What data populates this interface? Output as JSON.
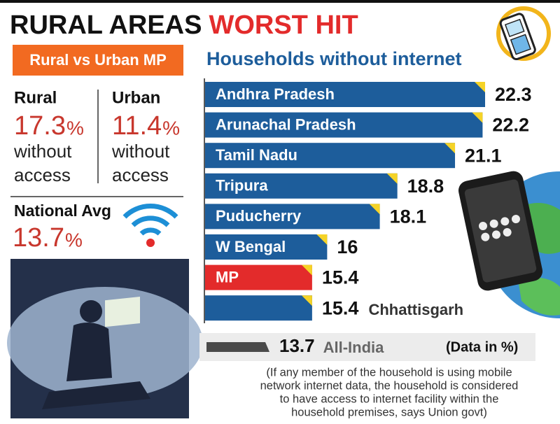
{
  "header": {
    "title_part1": "RURAL AREAS",
    "title_part2": "WORST HIT"
  },
  "left_panel": {
    "heading": "Rural vs Urban MP",
    "rural": {
      "label": "Rural",
      "value": 17.3,
      "unit": "%",
      "note_lines": [
        "without",
        "access"
      ]
    },
    "urban": {
      "label": "Urban",
      "value": 11.4,
      "unit": "%",
      "note_lines": [
        "without",
        "access"
      ]
    },
    "national": {
      "label": "National Avg",
      "value": 13.7,
      "unit": "%"
    }
  },
  "chart_data": {
    "type": "bar",
    "orientation": "horizontal",
    "title": "Households without internet",
    "categories": [
      "Andhra Pradesh",
      "Arunachal Pradesh",
      "Tamil Nadu",
      "Tripura",
      "Puducherry",
      "W Bengal",
      "MP",
      "Chhattisgarh"
    ],
    "label_position": [
      "inside",
      "inside",
      "inside",
      "inside",
      "inside",
      "inside",
      "inside",
      "outside"
    ],
    "values": [
      22.3,
      22.2,
      21.1,
      18.8,
      18.1,
      16,
      15.4,
      15.4
    ],
    "colors": [
      "#1d5d9b",
      "#1d5d9b",
      "#1d5d9b",
      "#1d5d9b",
      "#1d5d9b",
      "#1d5d9b",
      "#e32b2b",
      "#1d5d9b"
    ],
    "reference": {
      "label": "All-India",
      "value": 13.7,
      "color": "#4a4a4a"
    },
    "unit_note": "(Data in %)",
    "footnote_lines": [
      "(If any member of the household is using mobile",
      "network internet data, the household is considered",
      "to have access to internet facility within the",
      "household premises, says Union govt)"
    ]
  }
}
